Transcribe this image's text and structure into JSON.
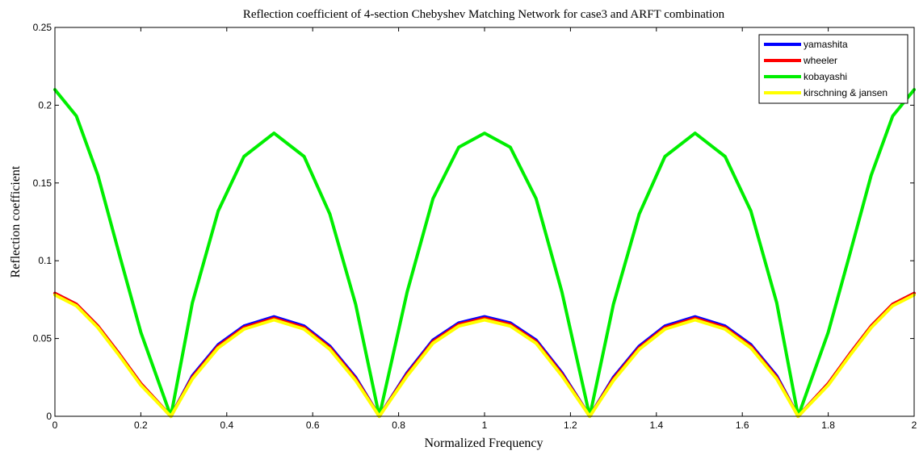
{
  "chart_data": {
    "type": "line",
    "title": "Reflection coefficient of 4-section Chebyshev Matching Network for case3 and ARFT combination",
    "xlabel": "Normalized Frequency",
    "ylabel": "Reflection coefficient",
    "xlim": [
      0,
      2
    ],
    "ylim": [
      0,
      0.25
    ],
    "xticks": [
      0,
      0.2,
      0.4,
      0.6,
      0.8,
      1,
      1.2,
      1.4,
      1.6,
      1.8,
      2
    ],
    "xtick_labels": [
      "0",
      "0.2",
      "0.4",
      "0.6",
      "0.8",
      "1",
      "1.2",
      "1.4",
      "1.6",
      "1.8",
      "2"
    ],
    "yticks": [
      0,
      0.05,
      0.1,
      0.15,
      0.2,
      0.25
    ],
    "ytick_labels": [
      "0",
      "0.05",
      "0.1",
      "0.15",
      "0.2",
      "0.25"
    ],
    "grid": false,
    "legend_position": "top-right",
    "series": [
      {
        "name": "yamashita",
        "color": "#0000ff",
        "x": [
          0,
          0.05,
          0.1,
          0.15,
          0.2,
          0.27,
          0.32,
          0.38,
          0.44,
          0.51,
          0.58,
          0.64,
          0.7,
          0.755,
          0.82,
          0.88,
          0.94,
          1.0,
          1.06,
          1.12,
          1.18,
          1.245,
          1.3,
          1.36,
          1.42,
          1.49,
          1.56,
          1.62,
          1.68,
          1.73,
          1.8,
          1.85,
          1.9,
          1.95,
          2.0
        ],
        "y": [
          0.079,
          0.072,
          0.058,
          0.04,
          0.021,
          0.0,
          0.026,
          0.046,
          0.058,
          0.064,
          0.058,
          0.045,
          0.025,
          0.0,
          0.028,
          0.049,
          0.06,
          0.064,
          0.06,
          0.049,
          0.028,
          0.0,
          0.025,
          0.045,
          0.058,
          0.064,
          0.058,
          0.046,
          0.026,
          0.0,
          0.021,
          0.04,
          0.058,
          0.072,
          0.079
        ]
      },
      {
        "name": "wheeler",
        "color": "#ff0000",
        "x": [
          0,
          0.05,
          0.1,
          0.15,
          0.2,
          0.27,
          0.32,
          0.38,
          0.44,
          0.51,
          0.58,
          0.64,
          0.7,
          0.755,
          0.82,
          0.88,
          0.94,
          1.0,
          1.06,
          1.12,
          1.18,
          1.245,
          1.3,
          1.36,
          1.42,
          1.49,
          1.56,
          1.62,
          1.68,
          1.73,
          1.8,
          1.85,
          1.9,
          1.95,
          2.0
        ],
        "y": [
          0.079,
          0.072,
          0.058,
          0.04,
          0.021,
          0.0,
          0.025,
          0.045,
          0.057,
          0.063,
          0.057,
          0.044,
          0.024,
          0.0,
          0.027,
          0.048,
          0.059,
          0.063,
          0.059,
          0.048,
          0.027,
          0.0,
          0.024,
          0.044,
          0.057,
          0.063,
          0.057,
          0.045,
          0.025,
          0.0,
          0.021,
          0.04,
          0.058,
          0.072,
          0.079
        ]
      },
      {
        "name": "kobayashi",
        "color": "#00ee00",
        "x": [
          0,
          0.05,
          0.1,
          0.15,
          0.2,
          0.27,
          0.32,
          0.38,
          0.44,
          0.51,
          0.58,
          0.64,
          0.7,
          0.755,
          0.82,
          0.88,
          0.94,
          1.0,
          1.06,
          1.12,
          1.18,
          1.245,
          1.3,
          1.36,
          1.42,
          1.49,
          1.56,
          1.62,
          1.68,
          1.73,
          1.8,
          1.85,
          1.9,
          1.95,
          2.0
        ],
        "y": [
          0.21,
          0.193,
          0.155,
          0.104,
          0.054,
          0.0,
          0.073,
          0.132,
          0.167,
          0.182,
          0.167,
          0.13,
          0.072,
          0.0,
          0.08,
          0.14,
          0.173,
          0.182,
          0.173,
          0.14,
          0.08,
          0.0,
          0.072,
          0.13,
          0.167,
          0.182,
          0.167,
          0.132,
          0.073,
          0.0,
          0.054,
          0.104,
          0.155,
          0.193,
          0.21
        ]
      },
      {
        "name": "kirschning & jansen",
        "color": "#ffff00",
        "x": [
          0,
          0.05,
          0.1,
          0.15,
          0.2,
          0.27,
          0.32,
          0.38,
          0.44,
          0.51,
          0.58,
          0.64,
          0.7,
          0.755,
          0.82,
          0.88,
          0.94,
          1.0,
          1.06,
          1.12,
          1.18,
          1.245,
          1.3,
          1.36,
          1.42,
          1.49,
          1.56,
          1.62,
          1.68,
          1.73,
          1.8,
          1.85,
          1.9,
          1.95,
          2.0
        ],
        "y": [
          0.078,
          0.071,
          0.057,
          0.039,
          0.02,
          0.0,
          0.024,
          0.044,
          0.056,
          0.062,
          0.056,
          0.043,
          0.023,
          0.0,
          0.026,
          0.047,
          0.058,
          0.062,
          0.058,
          0.047,
          0.026,
          0.0,
          0.023,
          0.043,
          0.056,
          0.062,
          0.056,
          0.044,
          0.024,
          0.0,
          0.02,
          0.039,
          0.057,
          0.071,
          0.078
        ]
      }
    ]
  }
}
